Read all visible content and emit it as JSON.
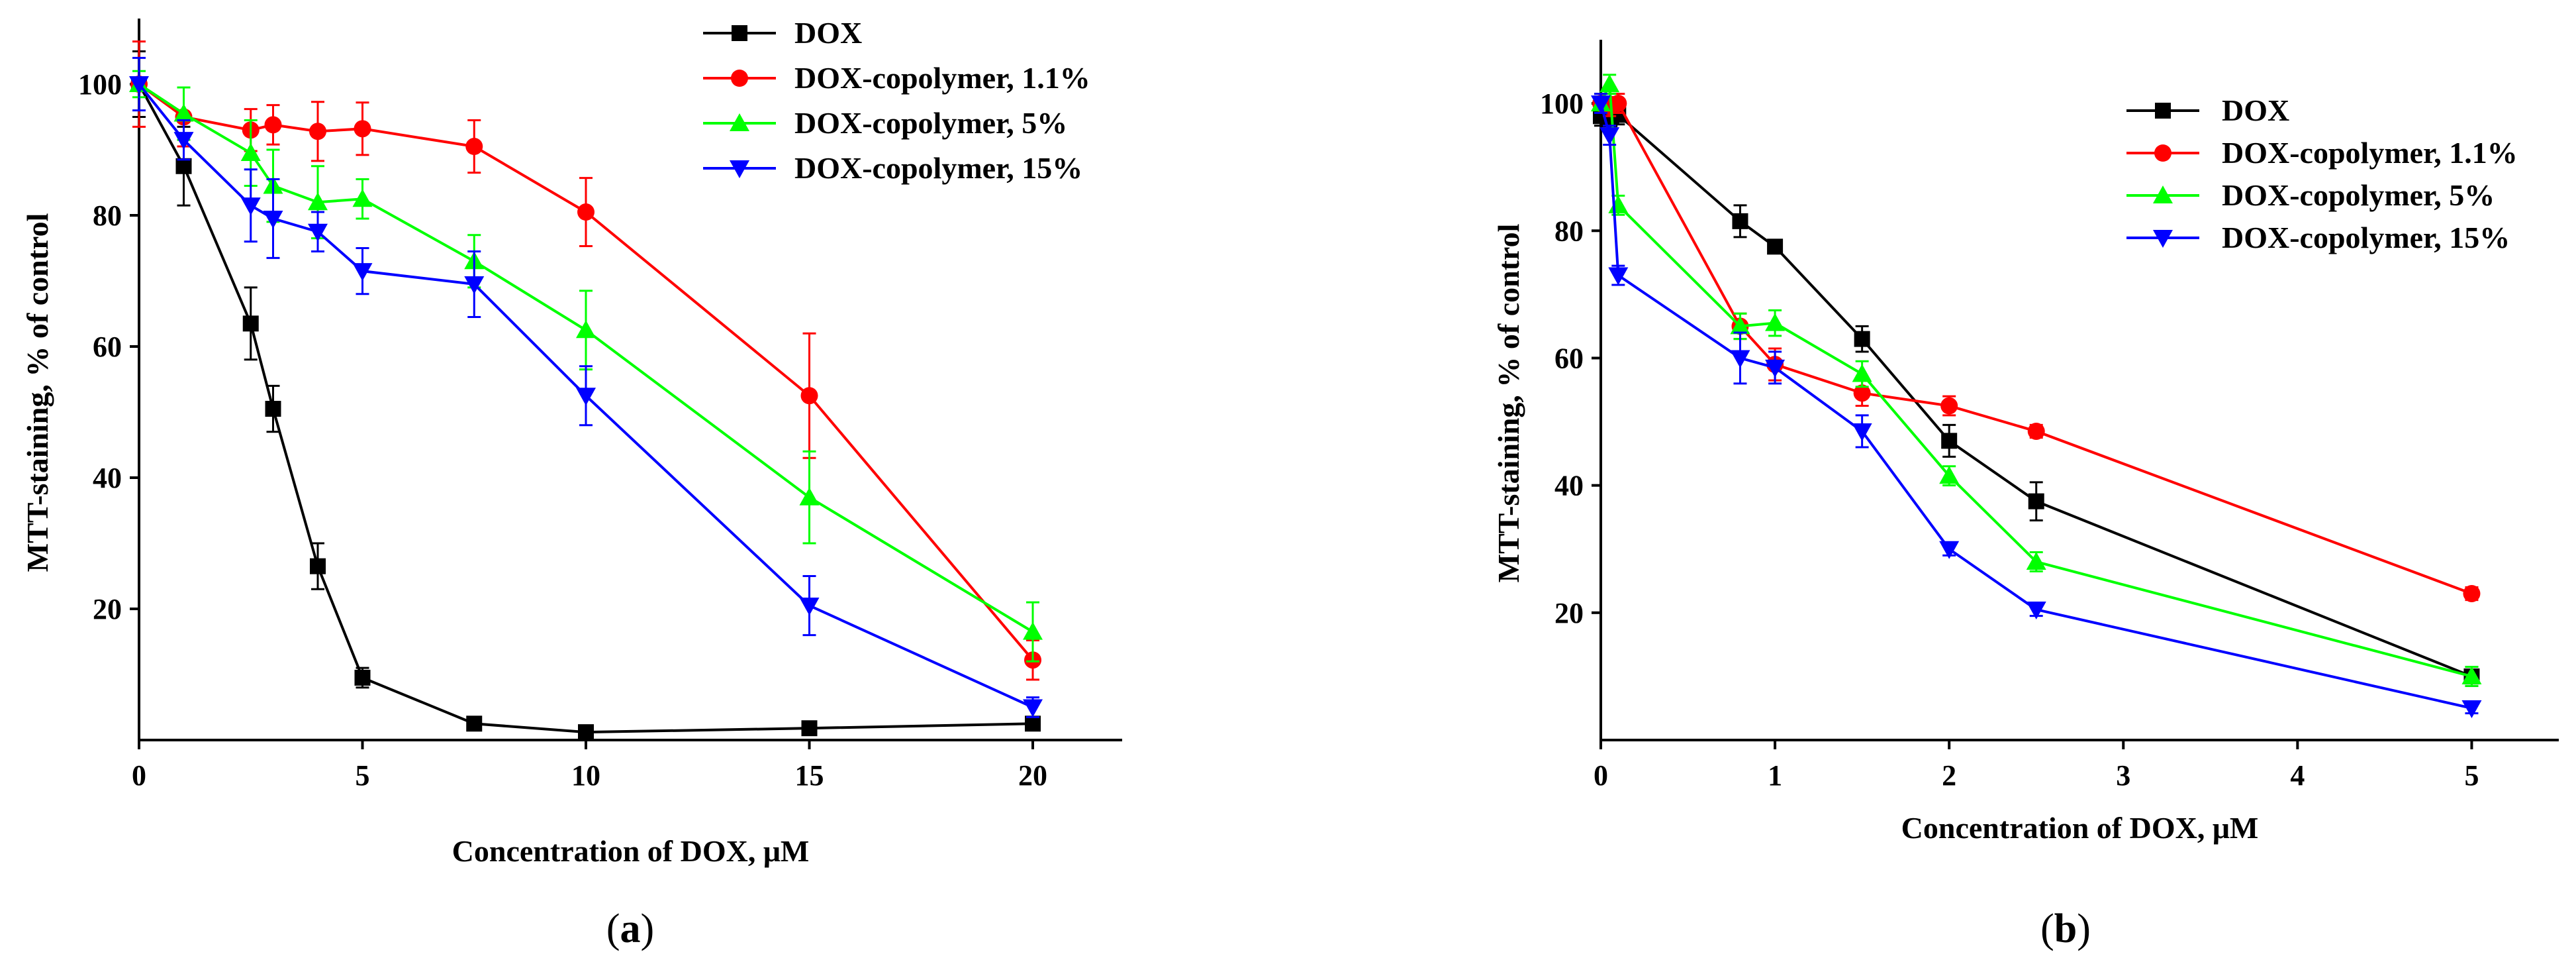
{
  "chart_data": [
    {
      "panel": "(a)",
      "panel_open": "(",
      "panel_letter": "a",
      "panel_close": ")",
      "type": "line",
      "xlabel": "Concentration of DOX, μM",
      "ylabel": "MTT-staining, % of control",
      "xlim": [
        0,
        22
      ],
      "ylim": [
        0,
        110
      ],
      "xticks": [
        0,
        5,
        10,
        15,
        20
      ],
      "yticks": [
        20,
        40,
        60,
        80,
        100
      ],
      "legend_position": "top-right",
      "series": [
        {
          "name": "DOX",
          "color": "#000000",
          "marker": "square",
          "x": [
            0,
            1,
            2.5,
            3,
            4,
            5,
            7.5,
            10,
            15,
            20
          ],
          "y": [
            100,
            87.5,
            63.5,
            50.5,
            26.5,
            9.5,
            2.5,
            1.2,
            1.8,
            2.5
          ],
          "err": [
            5,
            6,
            5.5,
            3.5,
            3.5,
            1.5,
            0.8,
            0.5,
            0.5,
            1
          ]
        },
        {
          "name": "DOX-copolymer, 1.1%",
          "color": "#ff0000",
          "marker": "circle",
          "x": [
            0,
            1,
            2.5,
            3,
            4,
            5,
            7.5,
            10,
            15,
            20
          ],
          "y": [
            100,
            95,
            93,
            93.8,
            92.8,
            93.2,
            90.5,
            80.5,
            52.5,
            12.2
          ],
          "err": [
            6.5,
            4.5,
            3.2,
            3,
            4.5,
            4,
            4,
            5.2,
            9.5,
            3
          ]
        },
        {
          "name": "DOX-copolymer, 5%",
          "color": "#00ff00",
          "marker": "triangle-up",
          "x": [
            0,
            1,
            2.5,
            3,
            4,
            5,
            7.5,
            10,
            15,
            20
          ],
          "y": [
            100,
            95.5,
            89.5,
            84.5,
            82,
            82.5,
            73,
            62.5,
            37,
            16.5
          ],
          "err": [
            2,
            4,
            5,
            5.5,
            5.5,
            3,
            4,
            6,
            7,
            4.5
          ]
        },
        {
          "name": "DOX-copolymer, 15%",
          "color": "#0000ff",
          "marker": "triangle-down",
          "x": [
            0,
            1,
            2.5,
            3,
            4,
            5,
            7.5,
            10,
            15,
            20
          ],
          "y": [
            100,
            91.5,
            81.5,
            79.5,
            77.5,
            71.5,
            69.5,
            52.5,
            20.5,
            5
          ],
          "err": [
            4,
            3,
            5.5,
            6,
            3,
            3.5,
            5,
            4.5,
            4.5,
            1.5
          ]
        }
      ]
    },
    {
      "panel": "(b)",
      "panel_open": "(",
      "panel_letter": "b",
      "panel_close": ")",
      "type": "line",
      "xlabel": "Concentration of DOX, μM",
      "ylabel": "MTT-staining, % of control",
      "xlim": [
        0,
        5.5
      ],
      "ylim": [
        0,
        110
      ],
      "xticks": [
        0,
        1,
        2,
        3,
        4,
        5
      ],
      "yticks": [
        20,
        40,
        60,
        80,
        100
      ],
      "legend_position": "top-right",
      "series": [
        {
          "name": "DOX",
          "color": "#000000",
          "marker": "square",
          "x": [
            0,
            0.05,
            0.1,
            0.8,
            1,
            1.5,
            2,
            2.5,
            5
          ],
          "y": [
            98,
            97.5,
            98.2,
            81.5,
            77.5,
            63,
            47,
            37.5,
            10
          ],
          "err": [
            1.5,
            1.5,
            1.5,
            2.5,
            1,
            2,
            2.5,
            3,
            1.5
          ]
        },
        {
          "name": "DOX-copolymer, 1.1%",
          "color": "#ff0000",
          "marker": "circle",
          "x": [
            0,
            0.05,
            0.1,
            0.8,
            1,
            1.5,
            2,
            2.5,
            5
          ],
          "y": [
            100,
            99.5,
            100,
            65,
            59,
            54.5,
            52.5,
            48.5,
            23
          ],
          "err": [
            1.5,
            1.5,
            1.5,
            2,
            2.5,
            2,
            1.5,
            1,
            1
          ]
        },
        {
          "name": "DOX-copolymer, 5%",
          "color": "#00ff00",
          "marker": "triangle-up",
          "x": [
            0,
            0.05,
            0.1,
            0.8,
            1,
            1.5,
            2,
            2.5,
            5
          ],
          "y": [
            100,
            103,
            84,
            65,
            65.5,
            57.5,
            41.5,
            28,
            10
          ],
          "err": [
            1.5,
            1.5,
            1.5,
            2,
            2,
            2,
            1.5,
            1.5,
            1.5
          ]
        },
        {
          "name": "DOX-copolymer, 15%",
          "color": "#0000ff",
          "marker": "triangle-down",
          "x": [
            0,
            0.05,
            0.1,
            0.8,
            1,
            1.5,
            2,
            2.5,
            5
          ],
          "y": [
            100,
            95,
            73,
            60,
            58.5,
            48.5,
            30,
            20.5,
            5
          ],
          "err": [
            1.5,
            1.5,
            1.5,
            4,
            2.5,
            2.5,
            1,
            1,
            0.8
          ]
        }
      ]
    }
  ]
}
